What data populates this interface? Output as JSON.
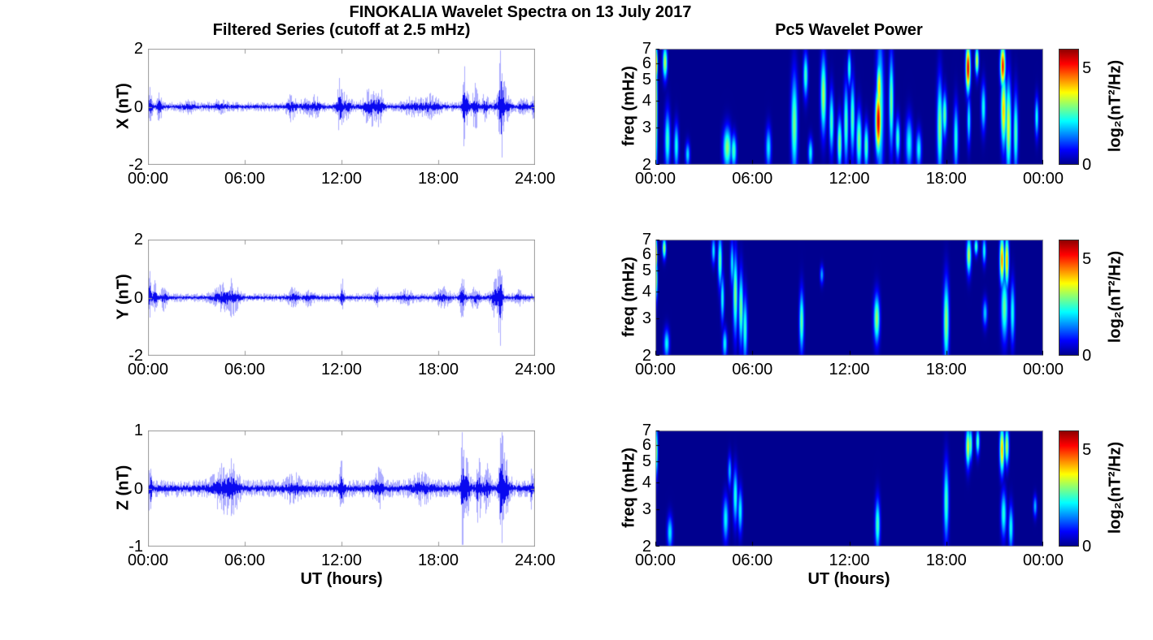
{
  "figure": {
    "title": "FINOKALIA Wavelet Spectra on 13 July 2017",
    "left_column_title": "Filtered Series (cutoff at 2.5 mHz)",
    "right_column_title": "Pc5 Wavelet Power",
    "xlabel": "UT (hours)",
    "colors": {
      "trace": "#0000ee",
      "axis_border": "#999999",
      "spectrogram_background": "#00008f",
      "text": "#000000",
      "background": "#ffffff"
    }
  },
  "chart_data": [
    {
      "type": "line",
      "component": "X",
      "ylabel": "X (nT)",
      "ylim": [
        -2,
        2
      ],
      "yticks": [
        2,
        0,
        -2
      ],
      "xticks": [
        "00:00",
        "06:00",
        "12:00",
        "18:00",
        "24:00"
      ],
      "xtick_hours": [
        0,
        6,
        12,
        18,
        24
      ],
      "x_range_hours": [
        0,
        24
      ],
      "noise_base_nT": 0.12,
      "burst_format": [
        "center_hour",
        "amplitude_nT",
        "sigma_hours"
      ],
      "bursts": [
        [
          0.15,
          0.45,
          0.08
        ],
        [
          0.7,
          0.3,
          0.12
        ],
        [
          2.5,
          0.08,
          0.3
        ],
        [
          4.5,
          0.1,
          0.3
        ],
        [
          8.9,
          0.28,
          0.2
        ],
        [
          9.8,
          0.12,
          0.3
        ],
        [
          10.4,
          0.18,
          0.25
        ],
        [
          11.9,
          0.55,
          0.1
        ],
        [
          12.2,
          0.25,
          0.3
        ],
        [
          13.8,
          0.45,
          0.3
        ],
        [
          14.4,
          0.35,
          0.15
        ],
        [
          16.3,
          0.15,
          0.4
        ],
        [
          17.5,
          0.22,
          0.4
        ],
        [
          19.6,
          1.25,
          0.05
        ],
        [
          19.75,
          0.45,
          0.15
        ],
        [
          20.3,
          0.55,
          0.12
        ],
        [
          20.9,
          0.28,
          0.15
        ],
        [
          21.9,
          1.2,
          0.08
        ],
        [
          22.0,
          0.55,
          0.25
        ],
        [
          23.3,
          0.15,
          0.2
        ],
        [
          23.9,
          0.3,
          0.05
        ]
      ]
    },
    {
      "type": "line",
      "component": "Y",
      "ylabel": "Y (nT)",
      "ylim": [
        -2,
        2
      ],
      "yticks": [
        2,
        0,
        -2
      ],
      "xticks": [
        "00:00",
        "06:00",
        "12:00",
        "18:00",
        "24:00"
      ],
      "xtick_hours": [
        0,
        6,
        12,
        18,
        24
      ],
      "x_range_hours": [
        0,
        24
      ],
      "noise_base_nT": 0.11,
      "burst_format": [
        "center_hour",
        "amplitude_nT",
        "sigma_hours"
      ],
      "bursts": [
        [
          0.1,
          0.7,
          0.06
        ],
        [
          0.4,
          0.35,
          0.12
        ],
        [
          1.0,
          0.28,
          0.12
        ],
        [
          4.7,
          0.28,
          0.45
        ],
        [
          5.3,
          0.25,
          0.25
        ],
        [
          9.0,
          0.18,
          0.2
        ],
        [
          10.0,
          0.15,
          0.2
        ],
        [
          12.05,
          0.4,
          0.08
        ],
        [
          14.2,
          0.28,
          0.08
        ],
        [
          16.0,
          0.12,
          0.3
        ],
        [
          18.3,
          0.18,
          0.3
        ],
        [
          19.5,
          0.45,
          0.12
        ],
        [
          20.3,
          0.28,
          0.15
        ],
        [
          21.55,
          0.45,
          0.2
        ],
        [
          21.85,
          1.1,
          0.1
        ],
        [
          23.0,
          0.12,
          0.2
        ]
      ]
    },
    {
      "type": "line",
      "component": "Z",
      "ylabel": "Z (nT)",
      "ylim": [
        -1,
        1
      ],
      "yticks": [
        1,
        0,
        -1
      ],
      "xticks": [
        "00:00",
        "06:00",
        "12:00",
        "18:00",
        "24:00"
      ],
      "xtick_hours": [
        0,
        6,
        12,
        18,
        24
      ],
      "x_range_hours": [
        0,
        24
      ],
      "noise_base_nT": 0.11,
      "burst_format": [
        "center_hour",
        "amplitude_nT",
        "sigma_hours"
      ],
      "bursts": [
        [
          0.15,
          0.35,
          0.08
        ],
        [
          4.7,
          0.22,
          0.45
        ],
        [
          5.3,
          0.18,
          0.25
        ],
        [
          9.0,
          0.12,
          0.3
        ],
        [
          12.0,
          0.28,
          0.1
        ],
        [
          14.3,
          0.18,
          0.2
        ],
        [
          17.0,
          0.12,
          0.4
        ],
        [
          19.5,
          0.75,
          0.06
        ],
        [
          19.75,
          0.3,
          0.15
        ],
        [
          20.5,
          0.4,
          0.1
        ],
        [
          21.0,
          0.22,
          0.15
        ],
        [
          21.9,
          0.8,
          0.08
        ],
        [
          22.15,
          0.35,
          0.2
        ],
        [
          23.8,
          0.22,
          0.06
        ]
      ]
    },
    {
      "type": "heatmap",
      "component": "X",
      "ylabel": "freq (mHz)",
      "ylim_mHz": [
        2,
        7
      ],
      "yscale": "log",
      "yticks": [
        7,
        6,
        5,
        4,
        3,
        2
      ],
      "xticks": [
        "00:00",
        "06:00",
        "12:00",
        "18:00",
        "00:00"
      ],
      "xtick_hours": [
        0,
        6,
        12,
        18,
        24
      ],
      "colorbar": {
        "label": "log₂(nT²/Hz)",
        "ticks": [
          5,
          0
        ],
        "range": [
          0,
          6
        ]
      },
      "blob_format": [
        "center_hour",
        "f_low_mHz",
        "f_high_mHz",
        "peak_log2_power",
        "sigma_hours"
      ],
      "blobs": [
        [
          0.05,
          2.0,
          7.0,
          3.4,
          0.06
        ],
        [
          0.07,
          5.0,
          7.0,
          3.9,
          0.05
        ],
        [
          0.6,
          5.2,
          7.0,
          3.4,
          0.1
        ],
        [
          0.75,
          2.0,
          3.4,
          2.6,
          0.12
        ],
        [
          1.3,
          2.0,
          3.0,
          2.4,
          0.1
        ],
        [
          2.0,
          2.0,
          2.5,
          2.1,
          0.1
        ],
        [
          4.45,
          2.0,
          2.9,
          3.1,
          0.18
        ],
        [
          4.85,
          2.0,
          2.7,
          2.7,
          0.12
        ],
        [
          7.0,
          2.0,
          2.9,
          2.2,
          0.12
        ],
        [
          8.6,
          2.0,
          4.8,
          3.0,
          0.14
        ],
        [
          9.3,
          4.3,
          6.4,
          2.7,
          0.1
        ],
        [
          9.6,
          2.0,
          2.6,
          2.3,
          0.1
        ],
        [
          10.4,
          3.0,
          6.0,
          3.3,
          0.12
        ],
        [
          10.9,
          2.4,
          4.2,
          2.7,
          0.1
        ],
        [
          11.4,
          2.0,
          3.2,
          3.1,
          0.1
        ],
        [
          11.8,
          2.2,
          4.4,
          2.8,
          0.1
        ],
        [
          12.0,
          4.8,
          6.6,
          2.5,
          0.08
        ],
        [
          12.2,
          2.4,
          4.6,
          2.8,
          0.1
        ],
        [
          12.6,
          2.0,
          3.4,
          3.0,
          0.12
        ],
        [
          13.05,
          2.0,
          3.0,
          2.8,
          0.1
        ],
        [
          13.8,
          2.4,
          4.3,
          5.6,
          0.13
        ],
        [
          13.85,
          3.6,
          5.8,
          4.0,
          0.11
        ],
        [
          13.9,
          2.0,
          6.8,
          2.8,
          0.16
        ],
        [
          14.6,
          2.6,
          6.0,
          3.0,
          0.1
        ],
        [
          15.0,
          2.2,
          3.2,
          2.6,
          0.1
        ],
        [
          15.7,
          2.0,
          3.2,
          2.3,
          0.15
        ],
        [
          16.3,
          2.0,
          2.8,
          2.3,
          0.12
        ],
        [
          17.6,
          2.0,
          4.6,
          3.1,
          0.12
        ],
        [
          17.9,
          2.8,
          4.2,
          2.9,
          0.1
        ],
        [
          18.6,
          2.0,
          3.6,
          2.5,
          0.1
        ],
        [
          19.35,
          4.6,
          7.0,
          5.5,
          0.1
        ],
        [
          19.4,
          2.6,
          4.0,
          2.3,
          0.08
        ],
        [
          19.9,
          5.4,
          7.0,
          3.6,
          0.08
        ],
        [
          20.3,
          3.0,
          4.6,
          2.4,
          0.1
        ],
        [
          21.5,
          4.8,
          7.0,
          5.2,
          0.11
        ],
        [
          21.55,
          2.6,
          5.0,
          4.1,
          0.12
        ],
        [
          21.85,
          2.0,
          4.6,
          3.6,
          0.12
        ],
        [
          22.3,
          2.0,
          4.0,
          2.8,
          0.1
        ],
        [
          23.6,
          2.8,
          4.0,
          2.4,
          0.08
        ]
      ]
    },
    {
      "type": "heatmap",
      "component": "Y",
      "ylabel": "freq (mHz)",
      "ylim_mHz": [
        2,
        7
      ],
      "yscale": "log",
      "yticks": [
        7,
        6,
        5,
        4,
        3,
        2
      ],
      "xticks": [
        "00:00",
        "06:00",
        "12:00",
        "18:00",
        "00:00"
      ],
      "xtick_hours": [
        0,
        6,
        12,
        18,
        24
      ],
      "colorbar": {
        "label": "log₂(nT²/Hz)",
        "ticks": [
          5,
          0
        ],
        "range": [
          0,
          6
        ]
      },
      "blobs": [
        [
          0.05,
          5.0,
          7.0,
          4.0,
          0.05
        ],
        [
          0.07,
          3.8,
          5.5,
          3.0,
          0.05
        ],
        [
          0.55,
          5.8,
          7.0,
          3.3,
          0.08
        ],
        [
          0.7,
          2.0,
          2.6,
          2.3,
          0.12
        ],
        [
          3.6,
          5.5,
          7.0,
          2.2,
          0.08
        ],
        [
          4.0,
          4.4,
          7.0,
          2.9,
          0.09
        ],
        [
          4.15,
          3.0,
          4.6,
          2.4,
          0.08
        ],
        [
          4.3,
          2.0,
          2.6,
          2.3,
          0.1
        ],
        [
          4.75,
          4.4,
          6.6,
          2.2,
          0.08
        ],
        [
          4.95,
          2.7,
          5.6,
          3.1,
          0.1
        ],
        [
          5.3,
          2.4,
          4.6,
          3.0,
          0.1
        ],
        [
          5.55,
          2.0,
          3.6,
          2.6,
          0.1
        ],
        [
          9.05,
          2.2,
          3.8,
          2.9,
          0.1
        ],
        [
          10.3,
          4.4,
          5.2,
          1.8,
          0.08
        ],
        [
          13.7,
          2.4,
          3.7,
          3.2,
          0.13
        ],
        [
          18.0,
          2.0,
          4.2,
          3.2,
          0.12
        ],
        [
          19.4,
          5.0,
          7.0,
          3.4,
          0.1
        ],
        [
          19.85,
          6.0,
          7.0,
          2.8,
          0.08
        ],
        [
          20.35,
          5.5,
          7.0,
          2.4,
          0.08
        ],
        [
          20.4,
          2.8,
          3.6,
          2.0,
          0.1
        ],
        [
          21.45,
          4.5,
          7.0,
          4.5,
          0.1
        ],
        [
          21.75,
          4.4,
          7.0,
          4.1,
          0.09
        ],
        [
          21.6,
          2.5,
          4.5,
          2.9,
          0.15
        ],
        [
          22.1,
          2.4,
          4.2,
          2.4,
          0.1
        ]
      ]
    },
    {
      "type": "heatmap",
      "component": "Z",
      "ylabel": "freq (mHz)",
      "ylim_mHz": [
        2,
        7
      ],
      "yscale": "log",
      "yticks": [
        7,
        6,
        5,
        4,
        3,
        2
      ],
      "xticks": [
        "00:00",
        "06:00",
        "12:00",
        "18:00",
        "00:00"
      ],
      "xtick_hours": [
        0,
        6,
        12,
        18,
        24
      ],
      "colorbar": {
        "label": "log₂(nT²/Hz)",
        "ticks": [
          5,
          0
        ],
        "range": [
          0,
          6
        ]
      },
      "blobs": [
        [
          0.07,
          4.5,
          7.0,
          3.0,
          0.06
        ],
        [
          0.9,
          2.0,
          2.7,
          2.2,
          0.12
        ],
        [
          4.35,
          2.2,
          3.3,
          2.3,
          0.12
        ],
        [
          4.6,
          3.9,
          5.2,
          1.9,
          0.08
        ],
        [
          4.95,
          2.7,
          4.4,
          2.5,
          0.1
        ],
        [
          5.25,
          2.4,
          3.6,
          2.3,
          0.1
        ],
        [
          13.75,
          2.0,
          3.2,
          2.7,
          0.11
        ],
        [
          18.0,
          2.3,
          4.6,
          2.7,
          0.11
        ],
        [
          19.35,
          4.9,
          7.0,
          3.6,
          0.1
        ],
        [
          19.5,
          5.2,
          7.0,
          3.0,
          0.08
        ],
        [
          19.95,
          5.5,
          7.0,
          2.8,
          0.08
        ],
        [
          21.45,
          4.6,
          7.0,
          4.2,
          0.1
        ],
        [
          21.75,
          5.0,
          7.0,
          3.4,
          0.09
        ],
        [
          21.55,
          2.3,
          3.5,
          2.5,
          0.12
        ],
        [
          22.0,
          2.0,
          3.0,
          2.4,
          0.1
        ],
        [
          23.5,
          2.8,
          3.4,
          1.9,
          0.08
        ]
      ]
    }
  ]
}
